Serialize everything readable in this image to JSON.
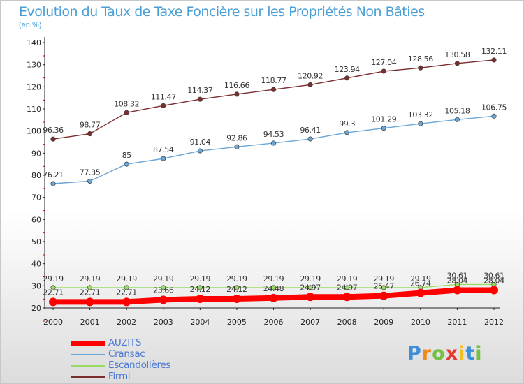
{
  "chart_data": {
    "type": "line",
    "title": "Evolution du Taux de Taxe Foncière sur les Propriétés Non Bâties",
    "ylabel": "(en %)",
    "ylim": [
      20,
      140
    ],
    "yticks": [
      20,
      30,
      40,
      50,
      60,
      70,
      80,
      90,
      100,
      110,
      120,
      130,
      140
    ],
    "grid": false,
    "x": [
      "2000",
      "2001",
      "2002",
      "2003",
      "2004",
      "2005",
      "2006",
      "2007",
      "2008",
      "2009",
      "2010",
      "2011",
      "2012"
    ],
    "series": [
      {
        "name": "AUZITS",
        "color": "#ff0000",
        "values": [
          22.71,
          22.71,
          22.71,
          23.66,
          24.12,
          24.12,
          24.48,
          24.97,
          24.97,
          25.47,
          26.74,
          28.04,
          28.04
        ],
        "labels": [
          "22.71",
          "22.71",
          "22.71",
          "23.66",
          "24.12",
          "24.12",
          "24.48",
          "24.97",
          "24.97",
          "25.47",
          "26.74",
          "28.04",
          "28.04"
        ]
      },
      {
        "name": "Cransac",
        "color": "#6aa6d6",
        "values": [
          76.21,
          77.35,
          85,
          87.54,
          91.04,
          92.86,
          94.53,
          96.41,
          99.3,
          101.29,
          103.32,
          105.18,
          106.75
        ],
        "labels": [
          "76.21",
          "77.35",
          "85",
          "87.54",
          "91.04",
          "92.86",
          "94.53",
          "96.41",
          "99.3",
          "101.29",
          "103.32",
          "105.18",
          "106.75"
        ]
      },
      {
        "name": "Escandolières",
        "color": "#99dd66",
        "values": [
          29.19,
          29.19,
          29.19,
          29.19,
          29.19,
          29.19,
          29.19,
          29.19,
          29.19,
          29.19,
          29.19,
          30.61,
          30.61
        ],
        "labels": [
          "29.19",
          "29.19",
          "29.19",
          "29.19",
          "29.19",
          "29.19",
          "29.19",
          "29.19",
          "29.19",
          "29.19",
          "29.19",
          "30.61",
          "30.61"
        ]
      },
      {
        "name": "Firmi",
        "color": "#7a2e2e",
        "values": [
          96.36,
          98.77,
          108.32,
          111.47,
          114.37,
          116.66,
          118.77,
          120.92,
          123.94,
          127.04,
          128.56,
          130.58,
          132.11
        ],
        "labels": [
          "96.36",
          "98.77",
          "108.32",
          "111.47",
          "114.37",
          "116.66",
          "118.77",
          "120.92",
          "123.94",
          "127.04",
          "128.56",
          "130.58",
          "132.11"
        ]
      }
    ]
  },
  "legend": {
    "items": [
      {
        "label": "AUZITS",
        "color": "#ff0000"
      },
      {
        "label": "Cransac",
        "color": "#6aa6d6"
      },
      {
        "label": "Escandolières",
        "color": "#99dd66"
      },
      {
        "label": "Firmi",
        "color": "#7a2e2e"
      }
    ]
  },
  "logo": {
    "letters": [
      "P",
      "r",
      "o",
      "x",
      "i",
      "t",
      "i"
    ],
    "colors": [
      "#3d8ed8",
      "#f08a1c",
      "#74c043",
      "#e63a2e",
      "#f0c020",
      "#3d8ed8",
      "#74c043"
    ]
  }
}
